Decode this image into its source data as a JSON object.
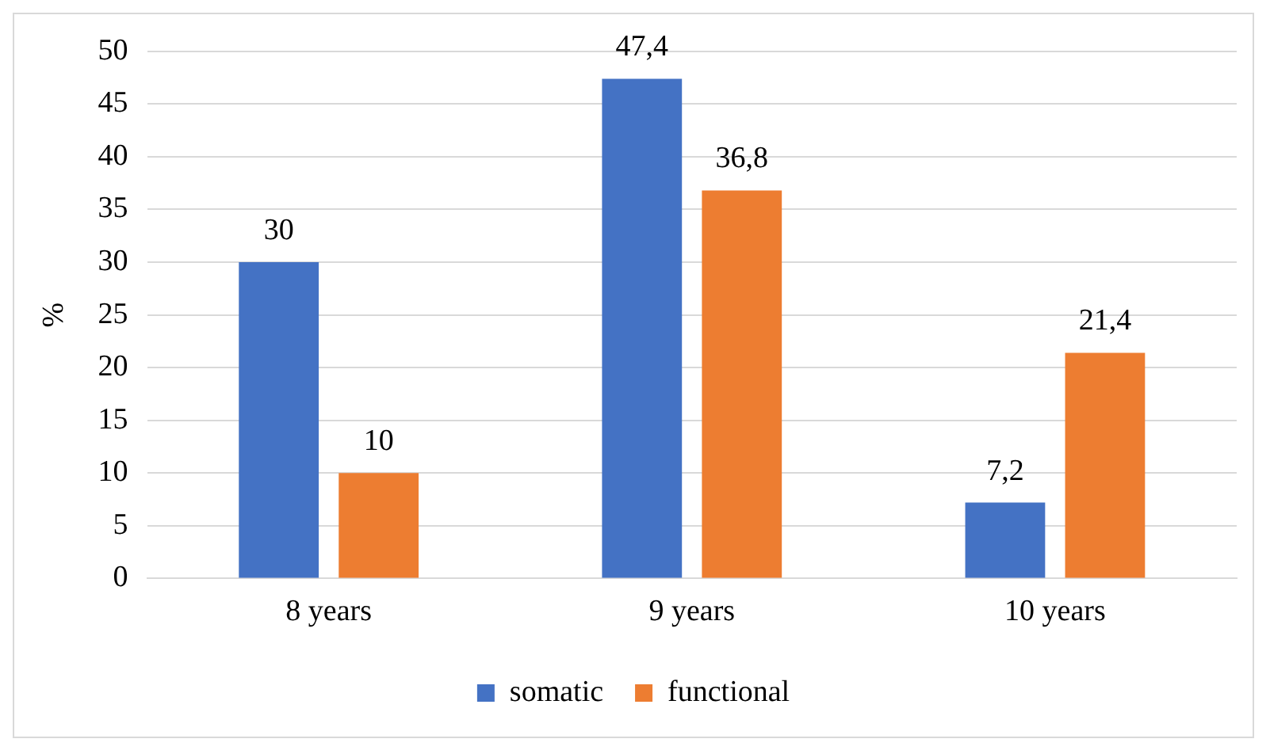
{
  "chart_data": {
    "type": "bar",
    "ylabel": "%",
    "categories": [
      "8 years",
      "9 years",
      "10 years"
    ],
    "series": [
      {
        "name": "somatic",
        "color": "#4472c4",
        "values": [
          30,
          47.4,
          7.2
        ],
        "value_labels": [
          "30",
          "47,4",
          "7,2"
        ]
      },
      {
        "name": "functional",
        "color": "#ed7d31",
        "values": [
          10,
          36.8,
          21.4
        ],
        "value_labels": [
          "10",
          "36,8",
          "21,4"
        ]
      }
    ],
    "ylim": [
      0,
      50
    ],
    "yticks": [
      0,
      5,
      10,
      15,
      20,
      25,
      30,
      35,
      40,
      45,
      50
    ],
    "grid": "y",
    "legend": "bottom"
  }
}
